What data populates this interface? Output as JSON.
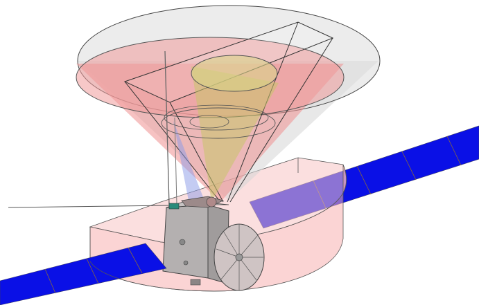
{
  "figure": {
    "subject": "spacecraft-fov-cones",
    "colors": {
      "background": "#ffffff",
      "outer_cone_fill": "#d8d8d8",
      "red_cone_fill": "#f09a9a",
      "yellow_cone_fill": "#c9c46a",
      "blue_cone_fill": "#9aa8e8",
      "solar_panel": "#0a10e6",
      "solar_panel_line": "#7a5a3a",
      "half_cylinder_fill": "#f7b8b8",
      "bus_fill": "#b8b4b4",
      "dish_fill": "#cfc6c6",
      "outline": "#333333"
    }
  }
}
